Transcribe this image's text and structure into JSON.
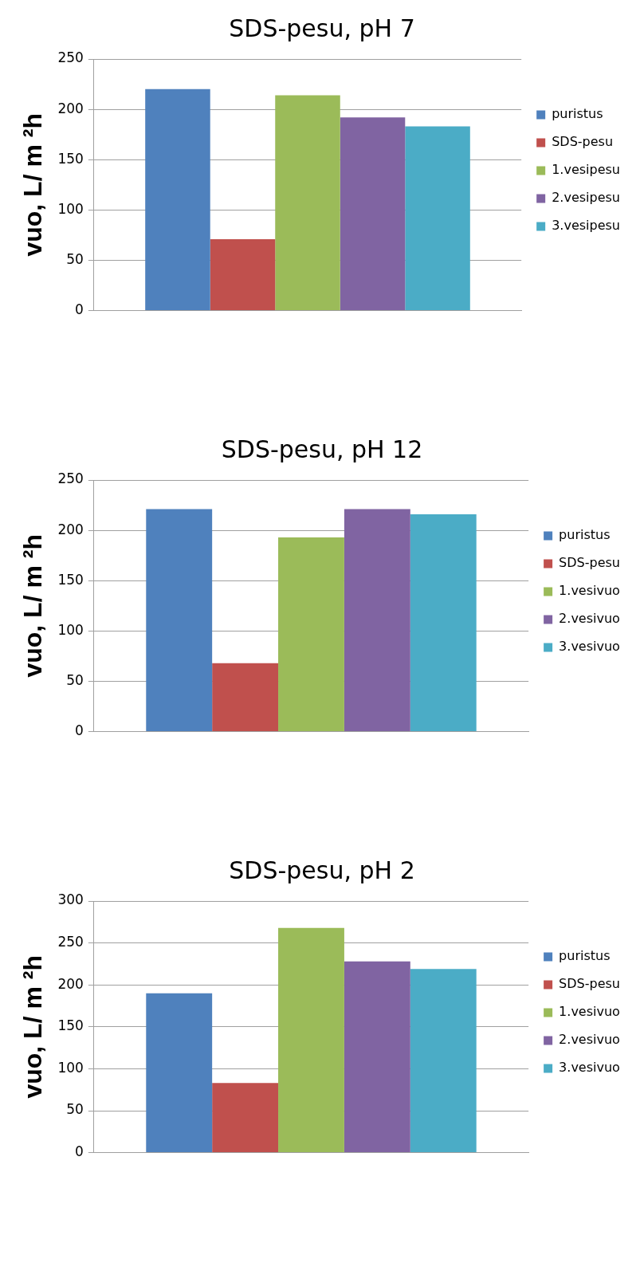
{
  "chart_data": [
    {
      "type": "bar",
      "title": "SDS-pesu, pH 7",
      "ylabel": "vuo, L/ m ²h",
      "categories": [
        null
      ],
      "ylim": [
        0,
        250
      ],
      "yticks": [
        0,
        50,
        100,
        150,
        200,
        250
      ],
      "grid": "y",
      "legend": "right",
      "series": [
        {
          "name": "puristus",
          "color": "#4f81bd",
          "values": [
            220
          ]
        },
        {
          "name": "SDS-pesu",
          "color": "#c0504d",
          "values": [
            71
          ]
        },
        {
          "name": "1.vesipesu",
          "color": "#9bbb59",
          "values": [
            214
          ]
        },
        {
          "name": "2.vesipesu",
          "color": "#8064a2",
          "values": [
            192
          ]
        },
        {
          "name": "3.vesipesu",
          "color": "#4bacc6",
          "values": [
            183
          ]
        }
      ]
    },
    {
      "type": "bar",
      "title": "SDS-pesu, pH 12",
      "ylabel": "vuo, L/ m ²h",
      "categories": [
        null
      ],
      "ylim": [
        0,
        250
      ],
      "yticks": [
        0,
        50,
        100,
        150,
        200,
        250
      ],
      "grid": "y",
      "legend": "right",
      "series": [
        {
          "name": "puristus",
          "color": "#4f81bd",
          "values": [
            221
          ]
        },
        {
          "name": "SDS-pesu",
          "color": "#c0504d",
          "values": [
            68
          ]
        },
        {
          "name": "1.vesivuo",
          "color": "#9bbb59",
          "values": [
            193
          ]
        },
        {
          "name": "2.vesivuo",
          "color": "#8064a2",
          "values": [
            221
          ]
        },
        {
          "name": "3.vesivuo",
          "color": "#4bacc6",
          "values": [
            216
          ]
        }
      ]
    },
    {
      "type": "bar",
      "title": "SDS-pesu, pH 2",
      "ylabel": "vuo, L/ m ²h",
      "categories": [
        null
      ],
      "ylim": [
        0,
        300
      ],
      "yticks": [
        0,
        50,
        100,
        150,
        200,
        250,
        300
      ],
      "grid": "y",
      "legend": "right",
      "series": [
        {
          "name": "puristus",
          "color": "#4f81bd",
          "values": [
            190
          ]
        },
        {
          "name": "SDS-pesu",
          "color": "#c0504d",
          "values": [
            83
          ]
        },
        {
          "name": "1.vesivuo",
          "color": "#9bbb59",
          "values": [
            268
          ]
        },
        {
          "name": "2.vesivuo",
          "color": "#8064a2",
          "values": [
            228
          ]
        },
        {
          "name": "3.vesivuo",
          "color": "#4bacc6",
          "values": [
            219
          ]
        }
      ]
    }
  ]
}
